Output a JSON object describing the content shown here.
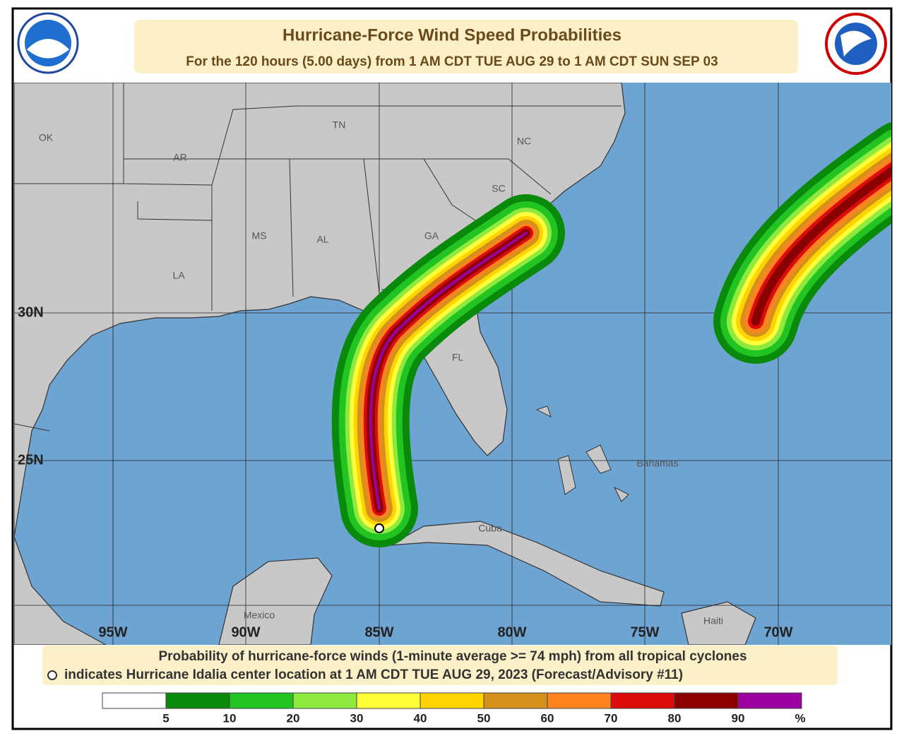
{
  "header": {
    "title": "Hurricane-Force Wind Speed Probabilities",
    "subtitle": "For the 120 hours (5.00 days) from 1 AM CDT TUE AUG 29 to 1 AM CDT SUN SEP 03"
  },
  "map": {
    "region_labels": [
      "OK",
      "AR",
      "TN",
      "NC",
      "SC",
      "MS",
      "AL",
      "GA",
      "LA",
      "FL",
      "Bahamas",
      "Cuba",
      "Mexico",
      "Haiti"
    ],
    "latitude_labels": [
      "30N",
      "25N"
    ],
    "longitude_labels": [
      "95W",
      "90W",
      "85W",
      "80W",
      "75W",
      "70W"
    ]
  },
  "footer": {
    "description": "Probability of hurricane-force winds (1-minute average >= 74 mph) from all tropical cyclones",
    "center_note": "indicates Hurricane Idalia center location at 1 AM CDT TUE AUG 29, 2023 (Forecast/Advisory #11)"
  },
  "legend": {
    "labels": [
      "5",
      "10",
      "20",
      "30",
      "40",
      "50",
      "60",
      "70",
      "80",
      "90"
    ],
    "unit": "%",
    "colors": [
      "#ffffff",
      "#0a8a0a",
      "#22c422",
      "#8eea3e",
      "#ffff3a",
      "#ffd400",
      "#d4921c",
      "#ff8420",
      "#dc0c0c",
      "#8a0000",
      "#9c00a0"
    ]
  }
}
